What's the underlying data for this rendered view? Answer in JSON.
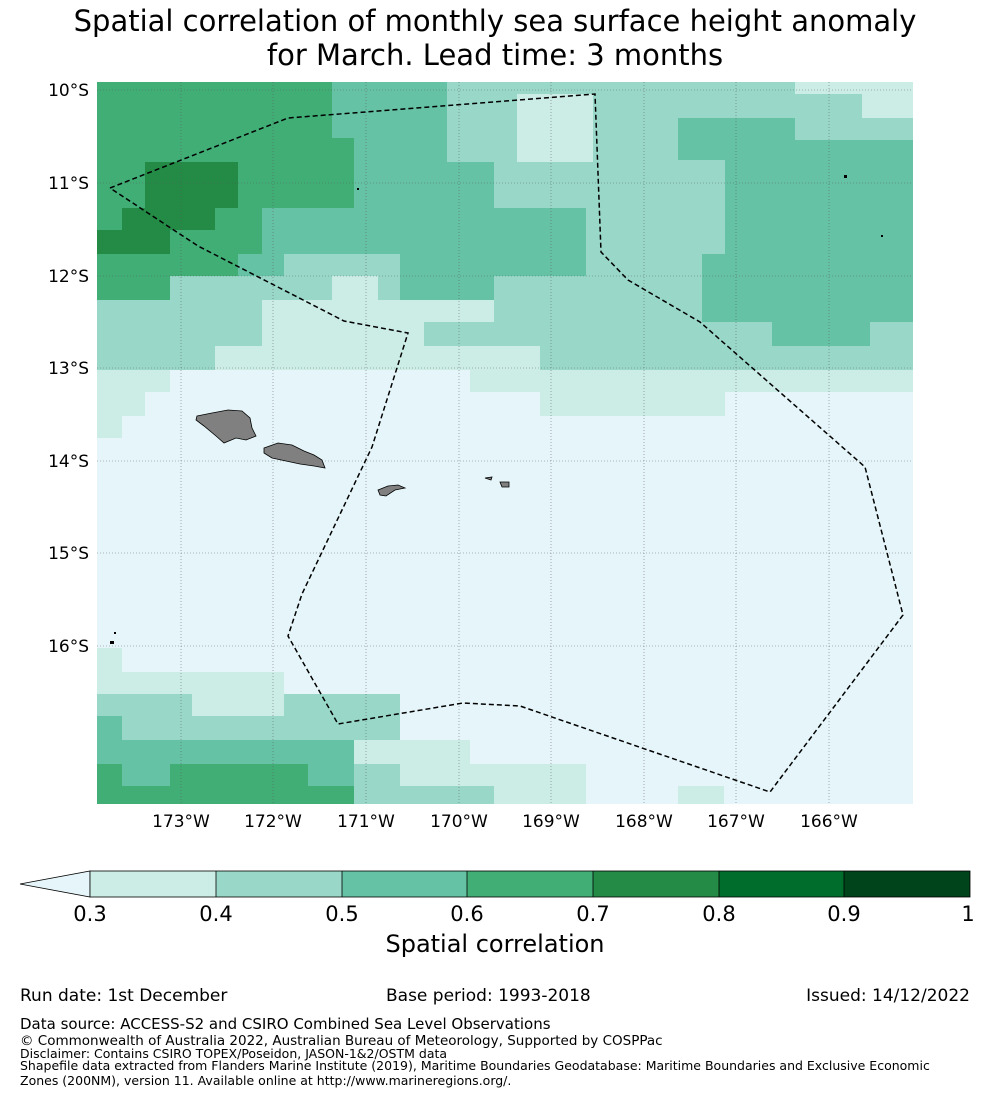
{
  "title_line1": "Spatial correlation of monthly sea surface height anomaly",
  "title_line2": "for March. Lead time: 3 months",
  "map": {
    "lat_labels": [
      "10°S",
      "11°S",
      "12°S",
      "13°S",
      "14°S",
      "15°S",
      "16°S"
    ],
    "lon_labels": [
      "173°W",
      "172°W",
      "171°W",
      "170°W",
      "169°W",
      "168°W",
      "167°W",
      "166°W"
    ],
    "land_color": "#808080",
    "boundary_style": "dashed"
  },
  "colorbar": {
    "label": "Spatial correlation",
    "ticks": [
      "0.3",
      "0.4",
      "0.5",
      "0.6",
      "0.7",
      "0.8",
      "0.9",
      "1"
    ],
    "under_color": "#e5f5f9",
    "colors": [
      "#ccece6",
      "#99d8c9",
      "#66c2a4",
      "#41ae76",
      "#238b45",
      "#006d2c",
      "#00441b"
    ]
  },
  "footer": {
    "run_date": "Run date: 1st December",
    "base_period": "Base period: 1993-2018",
    "issued": "Issued: 14/12/2022",
    "data_source": "Data source: ACCESS-S2 and CSIRO Combined Sea Level Observations",
    "copyright": "© Commonwealth of Australia 2022, Australian Bureau of Meteorology, Supported by COSPPac",
    "disclaimer": "Disclaimer: Contains CSIRO TOPEX/Poseidon, JASON-1&2/OSTM data",
    "shapefile": "Shapefile data extracted from Flanders Marine Institute (2019), Maritime Boundaries Geodatabase: Maritime Boundaries and Exclusive Economic Zones (200NM), version 11. Available online at http://www.marineregions.org/."
  }
}
